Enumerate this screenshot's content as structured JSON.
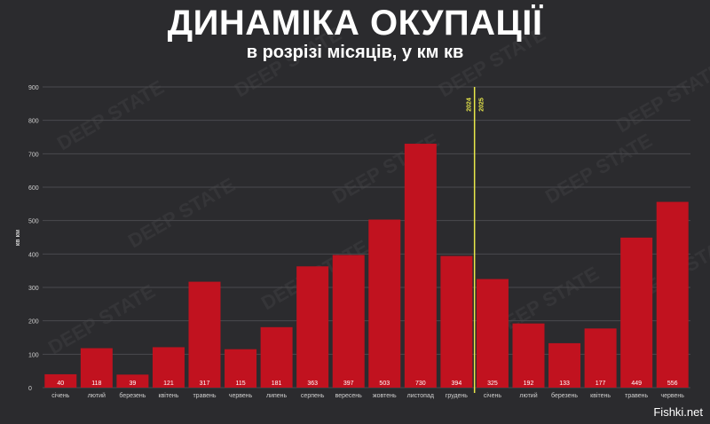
{
  "title": "ДИНАМІКА ОКУПАЦІЇ",
  "subtitle": "в розрізі місяців, у км кв",
  "watermark": "DEEP STATE",
  "credit": "Fishki.net",
  "colors": {
    "background": "#2b2b2e",
    "bar": "#c1121f",
    "grid": "#4a4a4e",
    "year_line": "#e8e84a",
    "text": "#ffffff",
    "axis_text": "#cfcfcf"
  },
  "chart_data": {
    "type": "bar",
    "ylabel": "кв км",
    "ylim": [
      0,
      900
    ],
    "yticks": [
      0,
      100,
      200,
      300,
      400,
      500,
      600,
      700,
      800,
      900
    ],
    "grid": true,
    "categories": [
      "січень",
      "лютий",
      "березень",
      "квітень",
      "травень",
      "червень",
      "липень",
      "серпень",
      "вересень",
      "жовтень",
      "листопад",
      "грудень",
      "січень",
      "лютий",
      "березень",
      "квітень",
      "травень",
      "червень"
    ],
    "values": [
      40,
      118,
      39,
      121,
      317,
      115,
      181,
      363,
      397,
      503,
      730,
      394,
      325,
      192,
      133,
      177,
      449,
      556
    ],
    "year_divider": {
      "after_index": 11,
      "label_before": "2024",
      "label_after": "2025"
    }
  }
}
